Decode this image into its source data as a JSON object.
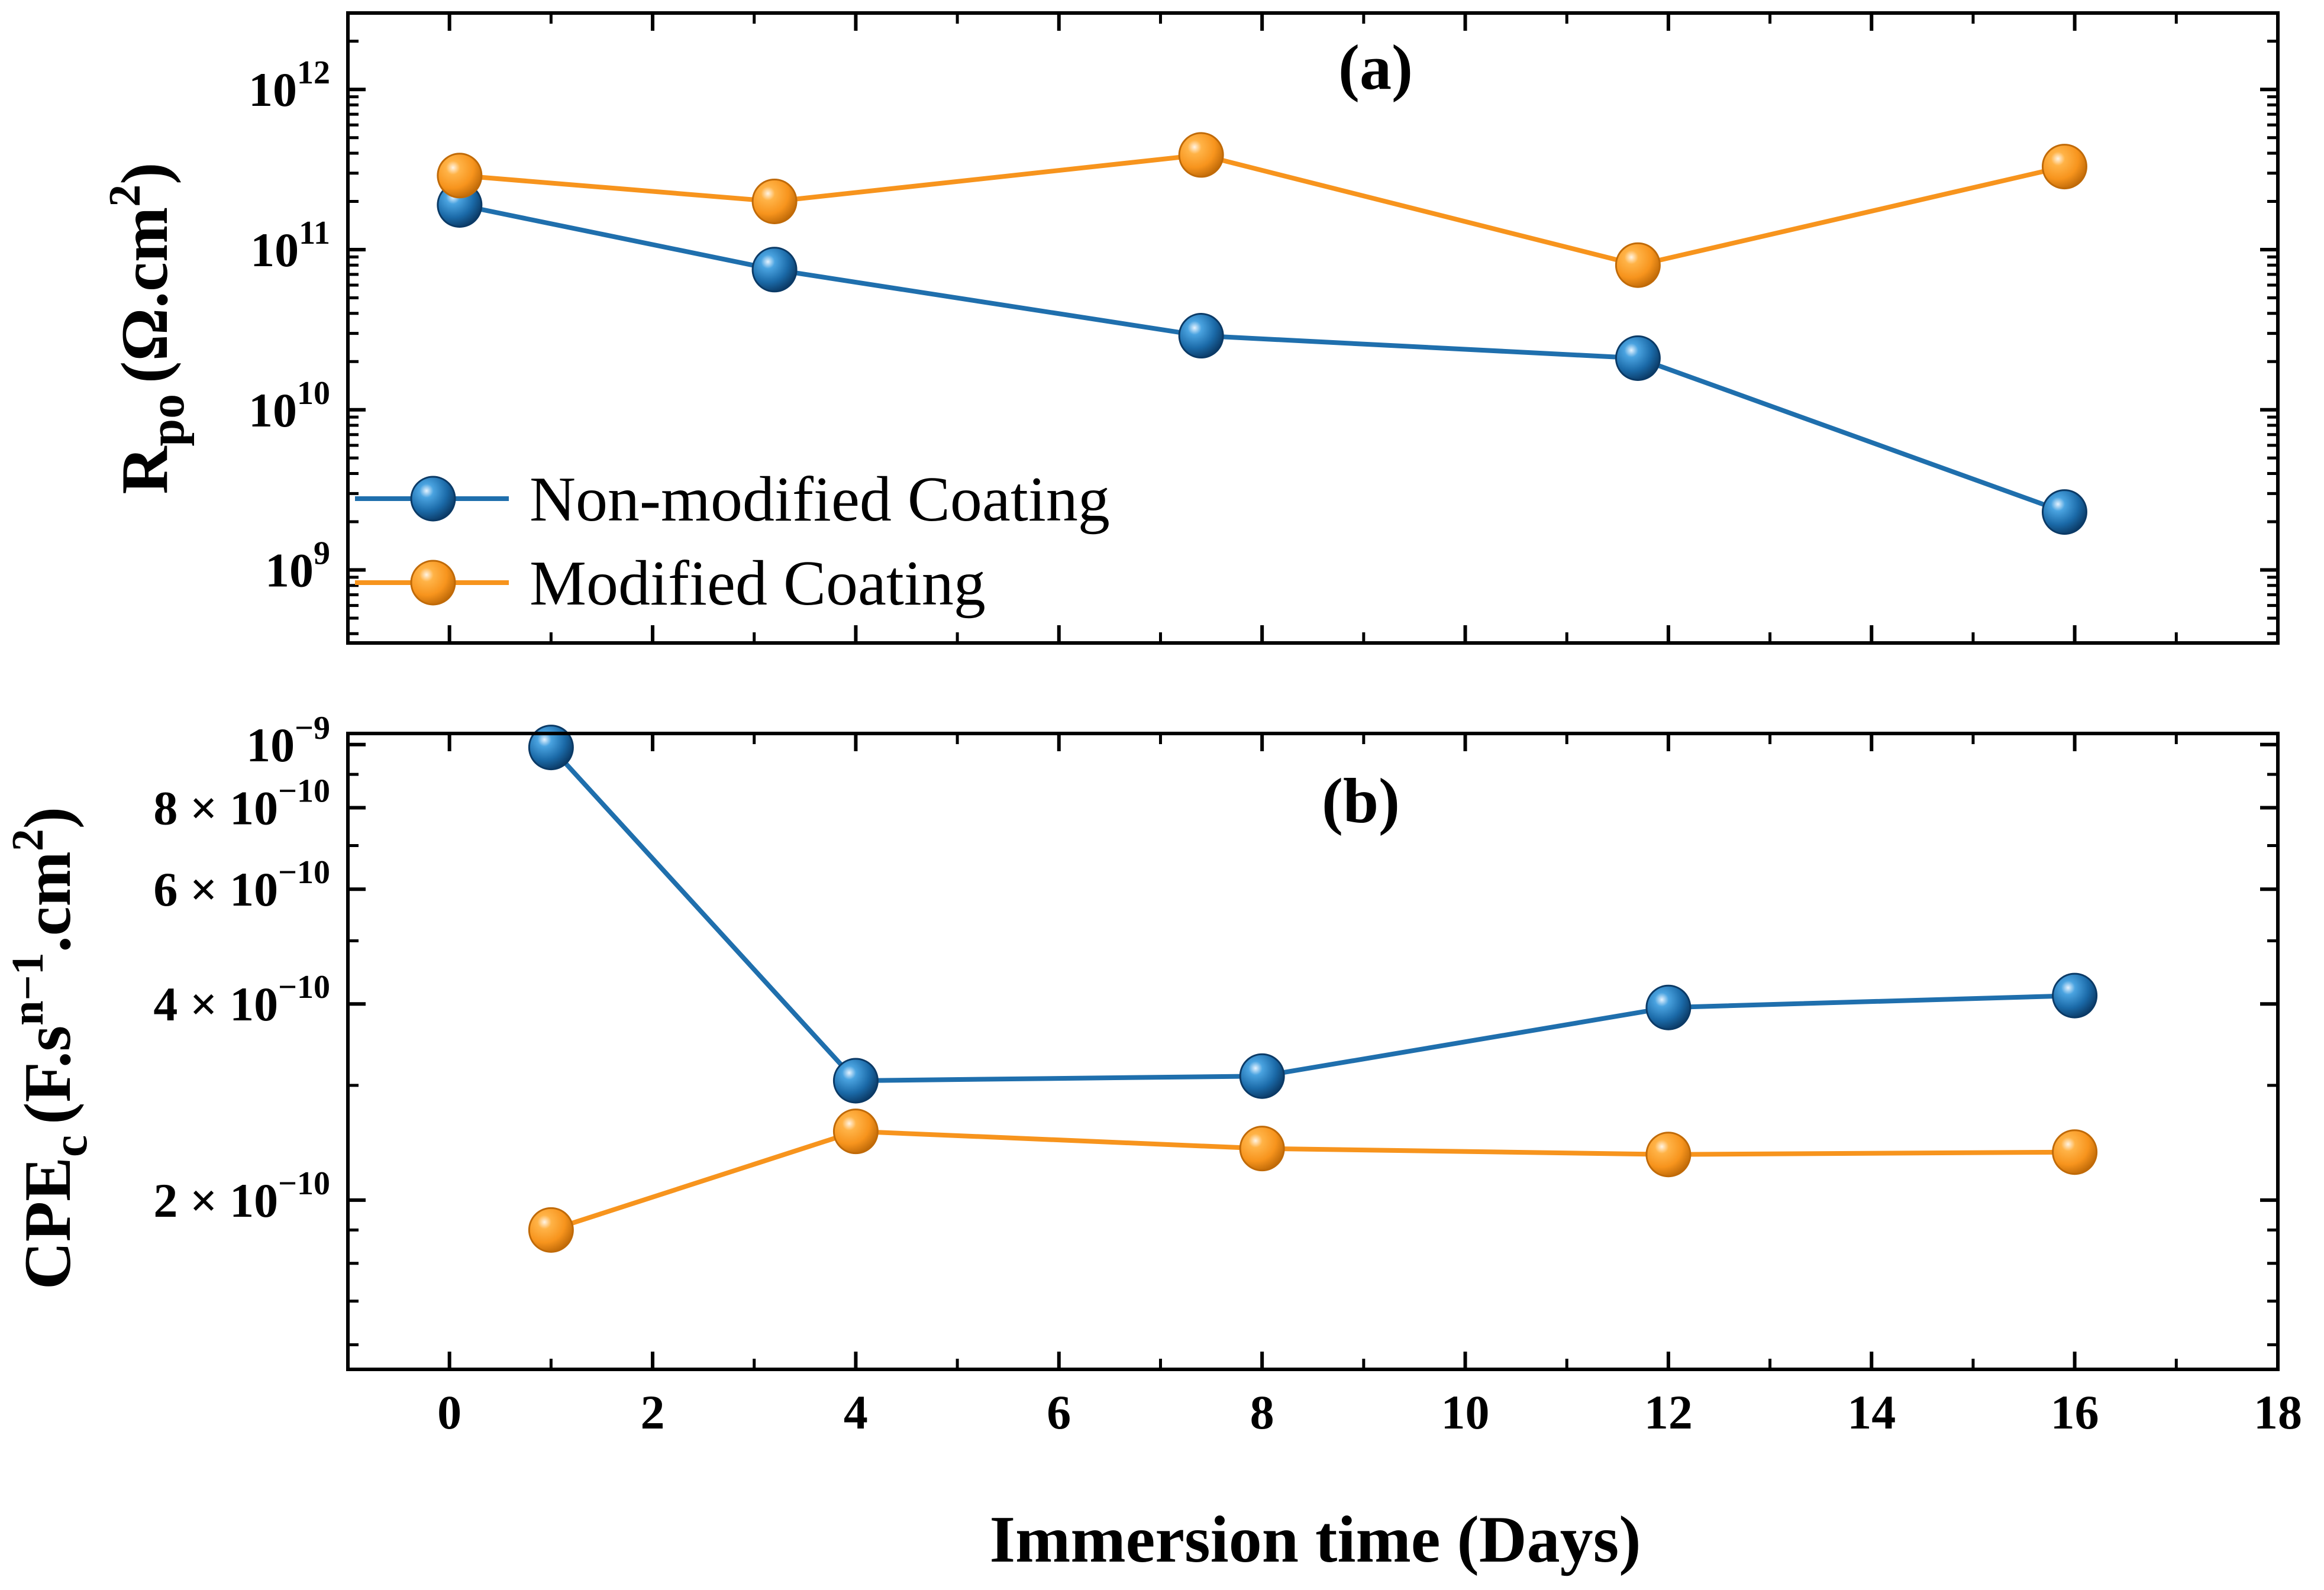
{
  "chart_data": [
    {
      "type": "line",
      "panel_label": "(a)",
      "ylabel_main": "R",
      "ylabel_sub": "po",
      "ylabel_unit": "(Ω.cm",
      "ylabel_unit_sup": "2",
      "ylabel_unit_close": ")",
      "yscale": "log",
      "ylim": [
        350000000,
        3000000000000
      ],
      "xlim": [
        -1,
        18
      ],
      "yticks": [
        {
          "base": "10",
          "exp": "9",
          "value": 1000000000
        },
        {
          "base": "10",
          "exp": "10",
          "value": 10000000000
        },
        {
          "base": "10",
          "exp": "11",
          "value": 100000000000
        },
        {
          "base": "10",
          "exp": "12",
          "value": 1000000000000
        }
      ],
      "legend": {
        "position": "lower-left"
      },
      "series": [
        {
          "name": "Non-modified Coating",
          "color": "#1f6fad",
          "x": [
            0.1,
            3.2,
            7.4,
            11.7,
            15.9
          ],
          "y": [
            190000000000,
            75000000000,
            29000000000,
            21000000000,
            2300000000
          ]
        },
        {
          "name": "Modified Coating",
          "color": "#f7941d",
          "x": [
            0.1,
            3.2,
            7.4,
            11.7,
            15.9
          ],
          "y": [
            290000000000,
            200000000000,
            390000000000,
            80000000000,
            330000000000
          ]
        }
      ]
    },
    {
      "type": "line",
      "panel_label": "(b)",
      "ylabel_main": "CPE",
      "ylabel_sub": "c",
      "ylabel_unit": "(F.s",
      "ylabel_unit_sup": "n−1",
      "ylabel_unit_mid": ".cm",
      "ylabel_unit_sup2": "2",
      "ylabel_unit_close": ")",
      "yscale": "log",
      "ylim": [
        1.1e-10,
        1.04e-09
      ],
      "xlim": [
        -1,
        18
      ],
      "xlabel": "Immersion time (Days)",
      "xticks": [
        "0",
        "2",
        "4",
        "6",
        "8",
        "10",
        "12",
        "14",
        "16",
        "18"
      ],
      "yticks": [
        {
          "mant": "2 × ",
          "base": "10",
          "exp": "−10",
          "value": 2e-10
        },
        {
          "mant": "4 × ",
          "base": "10",
          "exp": "−10",
          "value": 4e-10
        },
        {
          "mant": "6 × ",
          "base": "10",
          "exp": "−10",
          "value": 6e-10
        },
        {
          "mant": "8 × ",
          "base": "10",
          "exp": "−10",
          "value": 8e-10
        },
        {
          "mant": "",
          "base": "10",
          "exp": "−9",
          "value": 1e-09
        }
      ],
      "series": [
        {
          "name": "Non-modified Coating",
          "color": "#1f6fad",
          "x": [
            1,
            4,
            8,
            12,
            16
          ],
          "y": [
            9.9e-10,
            3.05e-10,
            3.1e-10,
            3.95e-10,
            4.12e-10
          ]
        },
        {
          "name": "Modified Coating",
          "color": "#f7941d",
          "x": [
            1,
            4,
            8,
            12,
            16
          ],
          "y": [
            1.8e-10,
            2.55e-10,
            2.4e-10,
            2.35e-10,
            2.37e-10
          ]
        }
      ]
    }
  ]
}
